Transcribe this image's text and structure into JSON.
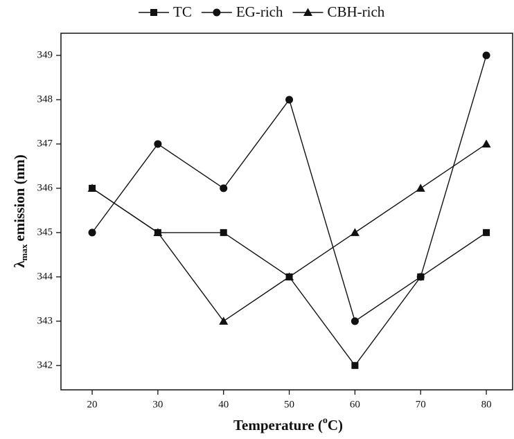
{
  "chart_data": {
    "type": "line",
    "x_label": {
      "text": "Temperature (",
      "superscript": "o",
      "end": "C)"
    },
    "y_label": {
      "symbol": "λ",
      "subscript": "max",
      "text": "emission (nm)"
    },
    "x": [
      20,
      30,
      40,
      50,
      60,
      70,
      80
    ],
    "series": [
      {
        "name": "TC",
        "color": "#111111",
        "marker": "square",
        "values": [
          346,
          345,
          345,
          344,
          342,
          344,
          345
        ]
      },
      {
        "name": "EG-rich",
        "color": "#111111",
        "marker": "circle",
        "values": [
          345,
          347,
          346,
          348,
          343,
          344,
          349
        ]
      },
      {
        "name": "CBH-rich",
        "color": "#111111",
        "marker": "triangle",
        "values": [
          346,
          345,
          343,
          344,
          345,
          346,
          347
        ]
      }
    ],
    "xlim": [
      15.25,
      84
    ],
    "xticks": [
      20,
      30,
      40,
      50,
      60,
      70,
      80
    ],
    "ylim": [
      341.45,
      349.5
    ],
    "yticks": [
      342,
      343,
      344,
      345,
      346,
      347,
      348,
      349
    ],
    "legend": "top"
  }
}
